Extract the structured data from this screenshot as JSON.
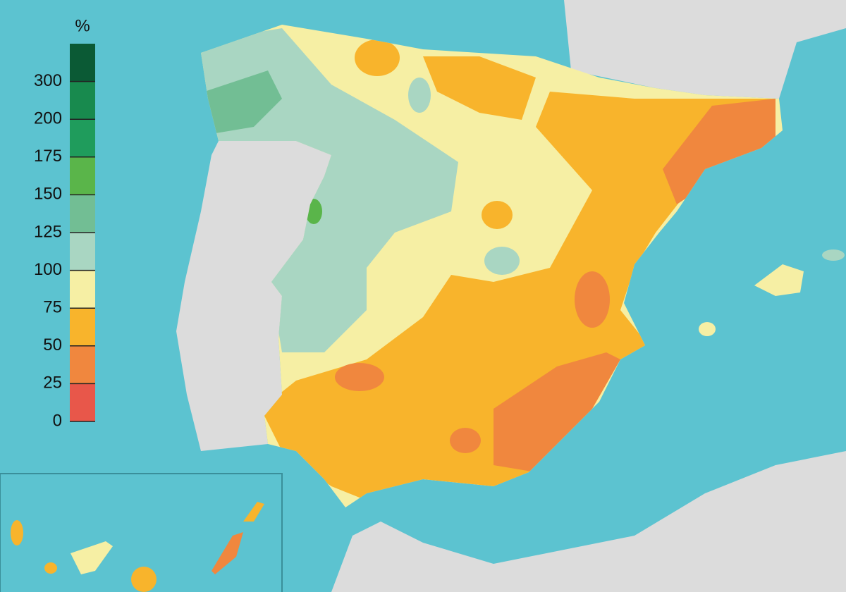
{
  "legend": {
    "title": "%",
    "ticks": [
      0,
      25,
      50,
      75,
      100,
      125,
      150,
      175,
      200,
      300
    ],
    "colors": [
      "#e8574a",
      "#f0873e",
      "#f8b42c",
      "#f6efa4",
      "#a9d6c2",
      "#72be94",
      "#5ab54a",
      "#1f9c5c",
      "#188a4e",
      "#0b5a35"
    ]
  }
}
